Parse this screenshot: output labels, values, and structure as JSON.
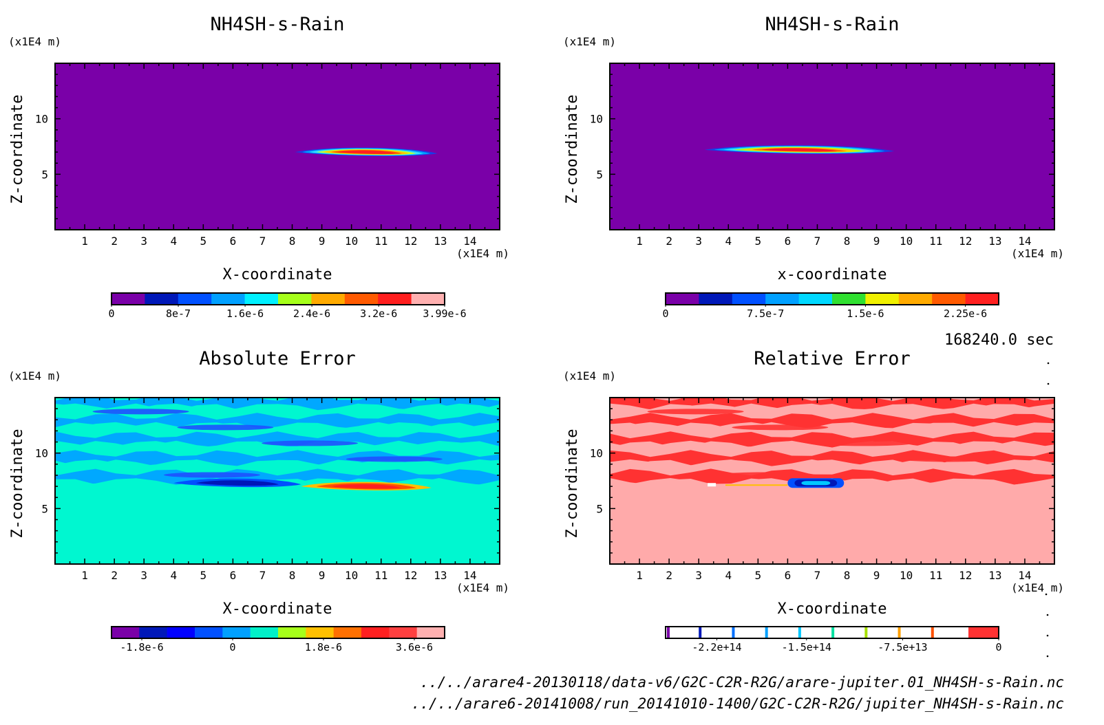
{
  "colors": {
    "frame": "#000000",
    "background": "#ffffff"
  },
  "time_label": "168240.0 sec",
  "footer": {
    "line1": "../../arare4-20130118/data-v6/G2C-C2R-R2G/arare-jupiter.01_NH4SH-s-Rain.nc",
    "line2": "../../arare6-20141008/run_20141010-1400/G2C-C2R-R2G/jupiter_NH4SH-s-Rain.nc"
  },
  "chart_data": [
    {
      "type": "heatmap",
      "title": "NH4SH-s-Rain",
      "xlabel": "X-coordinate",
      "ylabel": "Z-coordinate",
      "x_unit": "(x1E4 m)",
      "y_unit": "(x1E4 m)",
      "xlim": [
        0,
        15
      ],
      "ylim": [
        0,
        15
      ],
      "xticks": [
        "1",
        "2",
        "3",
        "4",
        "5",
        "6",
        "7",
        "8",
        "9",
        "10",
        "11",
        "12",
        "13",
        "14"
      ],
      "yticks": [
        "5",
        "10"
      ],
      "field_background_color": "#7a00a8",
      "features": [
        {
          "type": "plume",
          "x_range": [
            8.1,
            12.9
          ],
          "z_center": 7.0,
          "peak_value": 3.99e-06,
          "colors": [
            "#1a3ce6",
            "#00a0ff",
            "#35e0ff",
            "#c4ff28",
            "#ffc000",
            "#ff5000",
            "#ff2020"
          ]
        }
      ],
      "colorbar": {
        "colors": [
          "#7a00a8",
          "#0018b8",
          "#0050ff",
          "#00a0ff",
          "#00f0ff",
          "#a6ff1a",
          "#ffaa00",
          "#ff5a00",
          "#ff1e1e",
          "#ffb0b0"
        ],
        "tick_labels": [
          "0",
          "8e-7",
          "1.6e-6",
          "2.4e-6",
          "3.2e-6",
          "3.99e-6"
        ],
        "range": [
          0,
          3.99e-06
        ]
      }
    },
    {
      "type": "heatmap",
      "title": "NH4SH-s-Rain",
      "xlabel": "x-coordinate",
      "ylabel": "Z-coordinate",
      "x_unit": "(x1E4 m)",
      "y_unit": "(x1E4 m)",
      "xlim": [
        0,
        15
      ],
      "ylim": [
        0,
        15
      ],
      "xticks": [
        "1",
        "2",
        "3",
        "4",
        "5",
        "6",
        "7",
        "8",
        "9",
        "10",
        "11",
        "12",
        "13",
        "14"
      ],
      "yticks": [
        "5",
        "10"
      ],
      "field_background_color": "#7a00a8",
      "features": [
        {
          "type": "plume",
          "x_range": [
            3.2,
            9.6
          ],
          "z_center": 7.2,
          "peak_value": 2.25e-06,
          "colors": [
            "#1a3ce6",
            "#00a0ff",
            "#35e0ff",
            "#a6ff1a",
            "#ffd000",
            "#ff7000",
            "#ff2020"
          ]
        }
      ],
      "colorbar": {
        "colors": [
          "#7a00a8",
          "#0018b8",
          "#0050ff",
          "#00a0ff",
          "#00d8ff",
          "#30e030",
          "#f0f000",
          "#ffaa00",
          "#ff5a00",
          "#ff2020"
        ],
        "tick_labels": [
          "0",
          "7.5e-7",
          "1.5e-6",
          "2.25e-6"
        ],
        "range": [
          0,
          2.5e-06
        ]
      }
    },
    {
      "type": "heatmap",
      "title": "Absolute Error",
      "xlabel": "X-coordinate",
      "ylabel": "Z-coordinate",
      "x_unit": "(x1E4 m)",
      "y_unit": "(x1E4 m)",
      "xlim": [
        0,
        15
      ],
      "ylim": [
        0,
        15
      ],
      "xticks": [
        "1",
        "2",
        "3",
        "4",
        "5",
        "6",
        "7",
        "8",
        "9",
        "10",
        "11",
        "12",
        "13",
        "14"
      ],
      "yticks": [
        "5",
        "10"
      ],
      "field_background_color": "#00f7d0",
      "features": [
        {
          "type": "bands",
          "z_range": [
            6.6,
            15
          ],
          "band_color": "#00a8ff",
          "alt_color": "#00f7d0",
          "accent_color": "#1e50ff"
        },
        {
          "type": "negative_plume",
          "x_range": [
            4.0,
            8.3
          ],
          "z_center": 7.3,
          "min_value": -1.8e-06,
          "colors": [
            "#0050ff",
            "#0018b8"
          ]
        },
        {
          "type": "plume",
          "x_range": [
            8.3,
            12.7
          ],
          "z_center": 7.0,
          "peak_value": 3.6e-06,
          "colors": [
            "#ffc000",
            "#ff5000",
            "#ff2020"
          ]
        }
      ],
      "colorbar": {
        "colors": [
          "#7a00a8",
          "#0018b8",
          "#0000ff",
          "#0050ff",
          "#00a0ff",
          "#00f0c8",
          "#a6ff1a",
          "#ffc000",
          "#ff7000",
          "#ff2020",
          "#ff4040",
          "#ffb0b0"
        ],
        "tick_labels": [
          "-1.8e-6",
          "0",
          "1.8e-6",
          "3.6e-6"
        ],
        "range": [
          -2.4e-06,
          4.2e-06
        ]
      }
    },
    {
      "type": "heatmap",
      "title": "Relative Error",
      "xlabel": "X-coordinate",
      "ylabel": "Z-coordinate",
      "x_unit": "(x1E4 m)",
      "y_unit": "(x1E4 m)",
      "xlim": [
        0,
        15
      ],
      "ylim": [
        0,
        15
      ],
      "xticks": [
        "1",
        "2",
        "3",
        "4",
        "5",
        "6",
        "7",
        "8",
        "9",
        "10",
        "11",
        "12",
        "13",
        "14"
      ],
      "yticks": [
        "5",
        "10"
      ],
      "field_background_color": "#ffaaaa",
      "features": [
        {
          "type": "bands",
          "z_range": [
            6.6,
            15
          ],
          "band_color": "#ff3232",
          "alt_color": "#ffaaaa",
          "accent_color": "#ff3232"
        },
        {
          "type": "core",
          "x_range": [
            6.0,
            7.9
          ],
          "z_center": 7.3,
          "colors": [
            "#0050ff",
            "#0018b8",
            "#00c8ff"
          ]
        }
      ],
      "colorbar": {
        "colors": [
          "#ffffff",
          "#ffffff",
          "#ffffff",
          "#ffffff",
          "#ffffff",
          "#ffffff",
          "#ffffff",
          "#ffffff",
          "#ffffff",
          "#ffffff",
          "#ff3232"
        ],
        "thin_line_colors": [
          "#7a00a8",
          "#0018b8",
          "#0070ff",
          "#00a0ff",
          "#00c8ff",
          "#00e0a0",
          "#a6e000",
          "#ffa000",
          "#ff5000"
        ],
        "tick_labels": [
          "-2.2e+14",
          "-1.5e+14",
          "-7.5e+13",
          "0"
        ],
        "range": [
          -260000000000000.0,
          0
        ]
      }
    }
  ]
}
